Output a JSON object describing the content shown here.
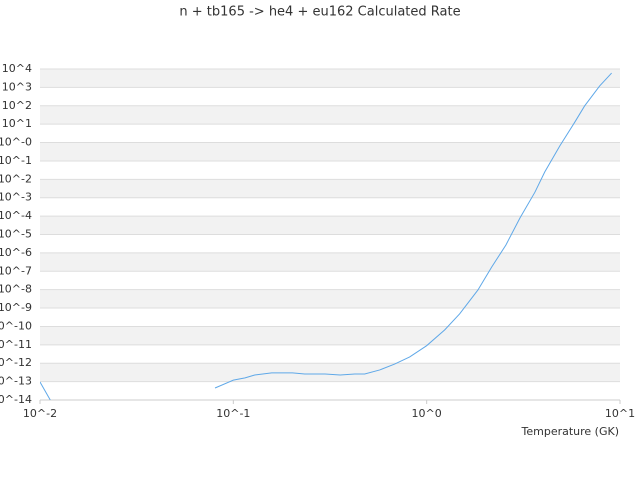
{
  "chart_data": {
    "type": "line",
    "title": "n + tb165 -> he4 + eu162 Calculated Rate",
    "x_label": "Temperature (GK)",
    "x": [
      0.01,
      0.0113,
      0.0641,
      0.0804,
      0.1,
      0.115,
      0.129,
      0.158,
      0.202,
      0.234,
      0.298,
      0.357,
      0.425,
      0.478,
      0.572,
      0.683,
      0.817,
      1.0,
      1.24,
      1.48,
      1.84,
      2.17,
      2.57,
      3.04,
      3.63,
      4.08,
      4.88,
      5.84,
      6.56,
      7.85,
      9.05
    ],
    "values": [
      9.5e-14,
      1e-14,
      null,
      4.5e-14,
      1.2e-13,
      1.6e-13,
      2.3e-13,
      3e-13,
      3e-13,
      2.6e-13,
      2.6e-13,
      2.3e-13,
      2.6e-13,
      2.6e-13,
      4.3e-13,
      9e-13,
      2.2e-12,
      9e-12,
      6.5e-11,
      4.8e-10,
      9.5e-09,
      1.7e-07,
      2.7e-06,
      8e-05,
      0.002,
      0.025,
      0.65,
      13,
      98,
      1200,
      6000
    ],
    "color": "#5fa8e8",
    "xscale": "log",
    "yscale": "log",
    "xlim": [
      0.01,
      10
    ],
    "xticks": [
      {
        "value": 0.01,
        "label": "10^-2"
      },
      {
        "value": 0.1,
        "label": "10^-1"
      },
      {
        "value": 1,
        "label": "10^0"
      },
      {
        "value": 10,
        "label": "10^1"
      }
    ],
    "ylim": [
      1e-14,
      10000
    ],
    "yticks": [
      {
        "value": 10000,
        "label": "10^4"
      },
      {
        "value": 1000,
        "label": "10^3"
      },
      {
        "value": 100,
        "label": "10^2"
      },
      {
        "value": 10,
        "label": "10^1"
      },
      {
        "value": 1,
        "label": "10^-0"
      },
      {
        "value": 0.1,
        "label": "10^-1"
      },
      {
        "value": 0.01,
        "label": "10^-2"
      },
      {
        "value": 0.001,
        "label": "10^-3"
      },
      {
        "value": 0.0001,
        "label": "10^-4"
      },
      {
        "value": 1e-05,
        "label": "10^-5"
      },
      {
        "value": 1e-06,
        "label": "10^-6"
      },
      {
        "value": 1e-07,
        "label": "10^-7"
      },
      {
        "value": 1e-08,
        "label": "10^-8"
      },
      {
        "value": 1e-09,
        "label": "10^-9"
      },
      {
        "value": 1e-10,
        "label": "10^-10"
      },
      {
        "value": 1e-11,
        "label": "10^-11"
      },
      {
        "value": 1e-12,
        "label": "10^-12"
      },
      {
        "value": 1e-13,
        "label": "10^-13"
      },
      {
        "value": 1e-14,
        "label": "10^-14"
      }
    ],
    "grid": true
  }
}
